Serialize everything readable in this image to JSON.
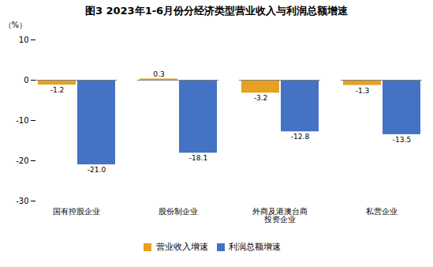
{
  "chart_data": {
    "type": "bar",
    "title": "图3  2023年1-6月份分经济类型营业收入与利润总额增速",
    "ylabel": "（%）",
    "categories": [
      "国有控股企业",
      "股份制企业",
      "外商及港澳台商\n投资企业",
      "私营企业"
    ],
    "series": [
      {
        "name": "营业收入增速",
        "color": "#E8A020",
        "values": [
          -1.2,
          0.3,
          -3.2,
          -1.3
        ]
      },
      {
        "name": "利润总额增速",
        "color": "#4472C4",
        "values": [
          -21.0,
          -18.1,
          -12.8,
          -13.5
        ],
        "value_labels": [
          "-21.0",
          "-18.1",
          "-12.8",
          "-13.5"
        ]
      }
    ],
    "ylim": [
      -30,
      10
    ],
    "yticks": [
      -30,
      -20,
      -10,
      0,
      10
    ],
    "grid": false,
    "legend": "bottom",
    "data_labels": true
  }
}
